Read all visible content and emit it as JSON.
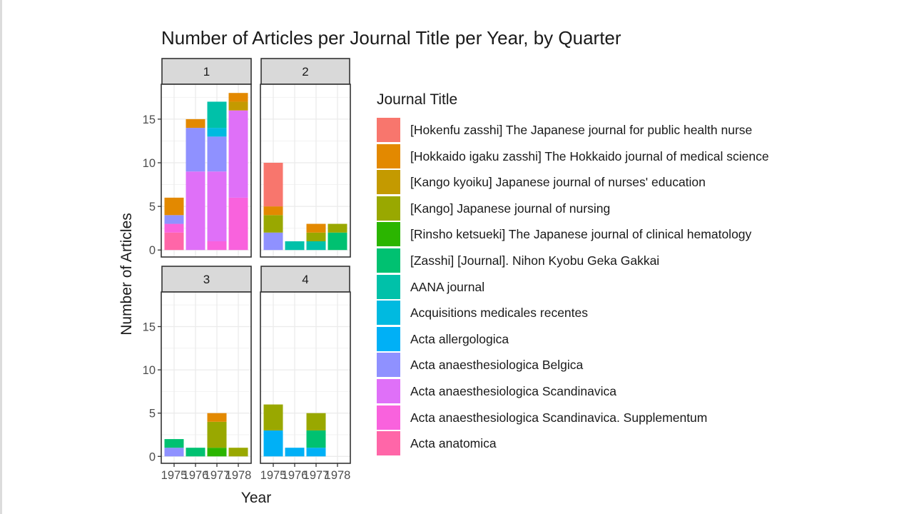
{
  "chart_data": {
    "type": "bar",
    "stacked": true,
    "facet_by": "Quarter",
    "title": "Number of Articles per Journal Title per Year, by Quarter",
    "xlabel": "Year",
    "ylabel": "Number of Articles",
    "ylim": [
      0,
      19
    ],
    "yticks": [
      0,
      5,
      10,
      15
    ],
    "categories": [
      "1975",
      "1976",
      "1977",
      "1978"
    ],
    "legend": {
      "title": "Journal Title",
      "position": "right",
      "entries": [
        {
          "label": "[Hokenfu zasshi] The Japanese journal for public health nurse",
          "color": "#F8766D"
        },
        {
          "label": "[Hokkaido igaku zasshi] The Hokkaido journal of medical science",
          "color": "#E38900"
        },
        {
          "label": "[Kango kyoiku] Japanese journal of nurses' education",
          "color": "#C49A00"
        },
        {
          "label": "[Kango] Japanese journal of nursing",
          "color": "#99A800"
        },
        {
          "label": "[Rinsho ketsueki] The Japanese journal of clinical hematology",
          "color": "#2BB500"
        },
        {
          "label": "[Zasshi] [Journal]. Nihon Kyobu Geka Gakkai",
          "color": "#00C171"
        },
        {
          "label": "AANA journal",
          "color": "#00C1A9"
        },
        {
          "label": "Acquisitions medicales recentes",
          "color": "#00BAE0"
        },
        {
          "label": "Acta allergologica",
          "color": "#00B0F6"
        },
        {
          "label": "Acta anaesthesiologica Belgica",
          "color": "#8F91FF"
        },
        {
          "label": "Acta anaesthesiologica Scandinavica",
          "color": "#DF70F8"
        },
        {
          "label": "Acta anaesthesiologica Scandinavica. Supplementum",
          "color": "#F962DD"
        },
        {
          "label": "Acta anatomica",
          "color": "#FF66A8"
        }
      ]
    },
    "facets": [
      {
        "label": "1",
        "bars": [
          {
            "x": "1975",
            "segments": [
              {
                "series": "Acta anatomica",
                "value": 2
              },
              {
                "series": "Acta anaesthesiologica Scandinavica. Supplementum",
                "value": 1
              },
              {
                "series": "Acta anaesthesiologica Belgica",
                "value": 1
              },
              {
                "series": "[Hokkaido igaku zasshi] The Hokkaido journal of medical science",
                "value": 2
              }
            ]
          },
          {
            "x": "1976",
            "segments": [
              {
                "series": "Acta anaesthesiologica Scandinavica",
                "value": 9
              },
              {
                "series": "Acta anaesthesiologica Belgica",
                "value": 5
              },
              {
                "series": "[Hokkaido igaku zasshi] The Hokkaido journal of medical science",
                "value": 1
              }
            ]
          },
          {
            "x": "1977",
            "segments": [
              {
                "series": "Acta anaesthesiologica Scandinavica. Supplementum",
                "value": 1
              },
              {
                "series": "Acta anaesthesiologica Scandinavica",
                "value": 8
              },
              {
                "series": "Acta anaesthesiologica Belgica",
                "value": 4
              },
              {
                "series": "Acquisitions medicales recentes",
                "value": 1
              },
              {
                "series": "AANA journal",
                "value": 3
              }
            ]
          },
          {
            "x": "1978",
            "segments": [
              {
                "series": "Acta anaesthesiologica Scandinavica. Supplementum",
                "value": 6
              },
              {
                "series": "Acta anaesthesiologica Scandinavica",
                "value": 10
              },
              {
                "series": "[Kango kyoiku] Japanese journal of nurses' education",
                "value": 1
              },
              {
                "series": "[Hokkaido igaku zasshi] The Hokkaido journal of medical science",
                "value": 1
              }
            ]
          }
        ]
      },
      {
        "label": "2",
        "bars": [
          {
            "x": "1975",
            "segments": [
              {
                "series": "Acta anaesthesiologica Belgica",
                "value": 2
              },
              {
                "series": "[Kango] Japanese journal of nursing",
                "value": 2
              },
              {
                "series": "[Hokkaido igaku zasshi] The Hokkaido journal of medical science",
                "value": 1
              },
              {
                "series": "[Hokenfu zasshi] The Japanese journal for public health nurse",
                "value": 5
              }
            ]
          },
          {
            "x": "1976",
            "segments": [
              {
                "series": "AANA journal",
                "value": 1
              }
            ]
          },
          {
            "x": "1977",
            "segments": [
              {
                "series": "AANA journal",
                "value": 1
              },
              {
                "series": "[Kango] Japanese journal of nursing",
                "value": 1
              },
              {
                "series": "[Hokkaido igaku zasshi] The Hokkaido journal of medical science",
                "value": 1
              }
            ]
          },
          {
            "x": "1978",
            "segments": [
              {
                "series": "[Zasshi] [Journal]. Nihon Kyobu Geka Gakkai",
                "value": 2
              },
              {
                "series": "[Kango] Japanese journal of nursing",
                "value": 1
              }
            ]
          }
        ]
      },
      {
        "label": "3",
        "bars": [
          {
            "x": "1975",
            "segments": [
              {
                "series": "Acta anaesthesiologica Belgica",
                "value": 1
              },
              {
                "series": "[Zasshi] [Journal]. Nihon Kyobu Geka Gakkai",
                "value": 1
              }
            ]
          },
          {
            "x": "1976",
            "segments": [
              {
                "series": "[Zasshi] [Journal]. Nihon Kyobu Geka Gakkai",
                "value": 1
              }
            ]
          },
          {
            "x": "1977",
            "segments": [
              {
                "series": "[Rinsho ketsueki] The Japanese journal of clinical hematology",
                "value": 1
              },
              {
                "series": "[Kango] Japanese journal of nursing",
                "value": 3
              },
              {
                "series": "[Hokkaido igaku zasshi] The Hokkaido journal of medical science",
                "value": 1
              }
            ]
          },
          {
            "x": "1978",
            "segments": [
              {
                "series": "[Kango] Japanese journal of nursing",
                "value": 1
              }
            ]
          }
        ]
      },
      {
        "label": "4",
        "bars": [
          {
            "x": "1975",
            "segments": [
              {
                "series": "Acta allergologica",
                "value": 3
              },
              {
                "series": "[Kango] Japanese journal of nursing",
                "value": 3
              }
            ]
          },
          {
            "x": "1976",
            "segments": [
              {
                "series": "Acta allergologica",
                "value": 1
              }
            ]
          },
          {
            "x": "1977",
            "segments": [
              {
                "series": "Acta allergologica",
                "value": 1
              },
              {
                "series": "[Zasshi] [Journal]. Nihon Kyobu Geka Gakkai",
                "value": 2
              },
              {
                "series": "[Kango] Japanese journal of nursing",
                "value": 2
              }
            ]
          },
          {
            "x": "1978",
            "segments": []
          }
        ]
      }
    ]
  }
}
